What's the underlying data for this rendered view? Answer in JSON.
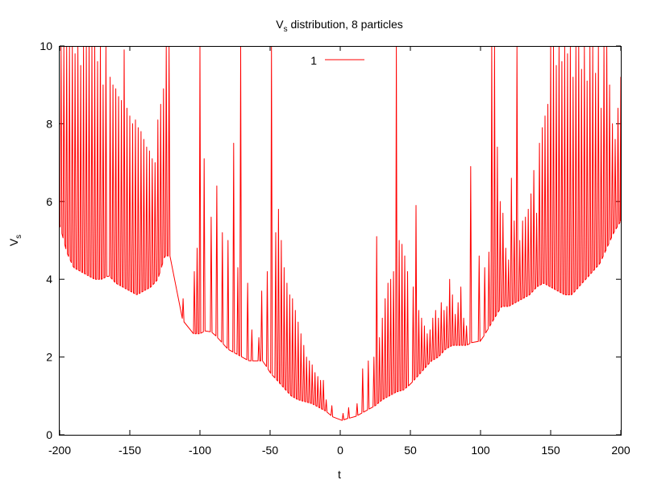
{
  "chart_data": {
    "type": "line",
    "title": "V",
    "title_sub": "s",
    "title_rest": " distribution, 8 particles",
    "xlabel": "t",
    "ylabel": "V",
    "ylabel_sub": "s",
    "xlim": [
      -200,
      200
    ],
    "ylim": [
      0,
      10
    ],
    "x_ticks": [
      -200,
      -150,
      -100,
      -50,
      0,
      50,
      100,
      150,
      200
    ],
    "y_ticks": [
      0,
      2,
      4,
      6,
      8,
      10
    ],
    "grid": false,
    "legend_position": "top-center",
    "series": [
      {
        "name": "1",
        "color": "#ff0000",
        "baseline": [
          [
            -200,
            5.4
          ],
          [
            -195,
            4.7
          ],
          [
            -190,
            4.3
          ],
          [
            -185,
            4.2
          ],
          [
            -180,
            4.1
          ],
          [
            -175,
            4.0
          ],
          [
            -170,
            4.0
          ],
          [
            -165,
            4.1
          ],
          [
            -160,
            3.9
          ],
          [
            -155,
            3.8
          ],
          [
            -150,
            3.7
          ],
          [
            -145,
            3.6
          ],
          [
            -140,
            3.7
          ],
          [
            -135,
            3.8
          ],
          [
            -130,
            4.0
          ],
          [
            -125,
            4.6
          ],
          [
            -120,
            4.6
          ],
          [
            -117,
            3.8
          ],
          [
            -114,
            3.1
          ],
          [
            -110,
            2.8
          ],
          [
            -106,
            2.6
          ],
          [
            -100,
            2.6
          ],
          [
            -95,
            2.7
          ],
          [
            -90,
            2.6
          ],
          [
            -85,
            2.4
          ],
          [
            -80,
            2.2
          ],
          [
            -75,
            2.1
          ],
          [
            -70,
            2.0
          ],
          [
            -65,
            1.9
          ],
          [
            -60,
            1.9
          ],
          [
            -55,
            1.9
          ],
          [
            -50,
            1.6
          ],
          [
            -45,
            1.4
          ],
          [
            -40,
            1.2
          ],
          [
            -35,
            1.0
          ],
          [
            -30,
            0.9
          ],
          [
            -25,
            0.85
          ],
          [
            -20,
            0.8
          ],
          [
            -15,
            0.7
          ],
          [
            -10,
            0.6
          ],
          [
            -5,
            0.45
          ],
          [
            0,
            0.35
          ],
          [
            5,
            0.42
          ],
          [
            10,
            0.45
          ],
          [
            15,
            0.55
          ],
          [
            20,
            0.65
          ],
          [
            25,
            0.75
          ],
          [
            30,
            0.9
          ],
          [
            35,
            1.0
          ],
          [
            40,
            1.1
          ],
          [
            45,
            1.15
          ],
          [
            50,
            1.3
          ],
          [
            55,
            1.5
          ],
          [
            60,
            1.7
          ],
          [
            65,
            1.9
          ],
          [
            70,
            2.0
          ],
          [
            75,
            2.2
          ],
          [
            80,
            2.3
          ],
          [
            85,
            2.3
          ],
          [
            90,
            2.3
          ],
          [
            95,
            2.4
          ],
          [
            100,
            2.4
          ],
          [
            105,
            2.7
          ],
          [
            110,
            3.0
          ],
          [
            115,
            3.3
          ],
          [
            120,
            3.3
          ],
          [
            125,
            3.4
          ],
          [
            130,
            3.5
          ],
          [
            135,
            3.6
          ],
          [
            140,
            3.8
          ],
          [
            145,
            3.9
          ],
          [
            150,
            3.8
          ],
          [
            155,
            3.7
          ],
          [
            160,
            3.6
          ],
          [
            165,
            3.6
          ],
          [
            170,
            3.8
          ],
          [
            175,
            4.0
          ],
          [
            180,
            4.2
          ],
          [
            185,
            4.4
          ],
          [
            190,
            4.8
          ],
          [
            195,
            5.2
          ],
          [
            200,
            5.5
          ]
        ],
        "spikes": [
          [
            -199,
            10
          ],
          [
            -197,
            10
          ],
          [
            -195,
            10
          ],
          [
            -193,
            10
          ],
          [
            -191,
            10
          ],
          [
            -189,
            9.8
          ],
          [
            -187,
            10
          ],
          [
            -185,
            9.5
          ],
          [
            -183,
            10
          ],
          [
            -181,
            10
          ],
          [
            -179,
            10
          ],
          [
            -177,
            10
          ],
          [
            -175,
            10
          ],
          [
            -173,
            9.6
          ],
          [
            -171,
            10
          ],
          [
            -169,
            9.0
          ],
          [
            -167,
            10
          ],
          [
            -164,
            9.2
          ],
          [
            -162,
            9.0
          ],
          [
            -160,
            8.9
          ],
          [
            -158,
            8.7
          ],
          [
            -156,
            8.6
          ],
          [
            -154,
            9.9
          ],
          [
            -152,
            8.4
          ],
          [
            -150,
            8.2
          ],
          [
            -148,
            8.0
          ],
          [
            -146,
            8.1
          ],
          [
            -144,
            7.9
          ],
          [
            -142,
            7.8
          ],
          [
            -140,
            7.6
          ],
          [
            -138,
            7.4
          ],
          [
            -136,
            7.3
          ],
          [
            -134,
            7.1
          ],
          [
            -132,
            7.0
          ],
          [
            -130,
            8.1
          ],
          [
            -128,
            8.5
          ],
          [
            -126,
            8.9
          ],
          [
            -124,
            10
          ],
          [
            -122,
            10
          ],
          [
            -112,
            3.5
          ],
          [
            -104,
            4.2
          ],
          [
            -102,
            4.8
          ],
          [
            -100,
            10
          ],
          [
            -97,
            7.1
          ],
          [
            -92,
            5.6
          ],
          [
            -88,
            6.4
          ],
          [
            -84,
            5.2
          ],
          [
            -80,
            5.0
          ],
          [
            -76,
            7.5
          ],
          [
            -73,
            4.3
          ],
          [
            -71,
            10
          ],
          [
            -66,
            3.9
          ],
          [
            -63,
            2.7
          ],
          [
            -58,
            2.5
          ],
          [
            -56,
            3.7
          ],
          [
            -52,
            4.2
          ],
          [
            -49,
            10
          ],
          [
            -46,
            5.2
          ],
          [
            -44,
            5.8
          ],
          [
            -42,
            5.0
          ],
          [
            -40,
            4.3
          ],
          [
            -38,
            3.9
          ],
          [
            -36,
            3.6
          ],
          [
            -34,
            3.5
          ],
          [
            -32,
            3.2
          ],
          [
            -30,
            2.9
          ],
          [
            -28,
            2.6
          ],
          [
            -26,
            2.3
          ],
          [
            -24,
            2.0
          ],
          [
            -22,
            1.9
          ],
          [
            -20,
            1.8
          ],
          [
            -18,
            1.6
          ],
          [
            -16,
            1.5
          ],
          [
            -14,
            1.4
          ],
          [
            -12,
            1.4
          ],
          [
            -10,
            0.9
          ],
          [
            -6,
            0.75
          ],
          [
            2,
            0.55
          ],
          [
            6,
            0.7
          ],
          [
            12,
            0.8
          ],
          [
            16,
            1.7
          ],
          [
            20,
            1.9
          ],
          [
            24,
            2.0
          ],
          [
            26,
            5.1
          ],
          [
            28,
            2.5
          ],
          [
            30,
            3.0
          ],
          [
            32,
            3.5
          ],
          [
            34,
            3.9
          ],
          [
            36,
            4.0
          ],
          [
            38,
            4.2
          ],
          [
            40,
            10
          ],
          [
            42,
            5.0
          ],
          [
            44,
            4.9
          ],
          [
            46,
            4.6
          ],
          [
            48,
            4.2
          ],
          [
            52,
            3.8
          ],
          [
            54,
            5.9
          ],
          [
            56,
            3.2
          ],
          [
            58,
            3.0
          ],
          [
            60,
            2.8
          ],
          [
            62,
            2.6
          ],
          [
            64,
            2.7
          ],
          [
            66,
            3.0
          ],
          [
            68,
            3.2
          ],
          [
            70,
            3.0
          ],
          [
            72,
            3.4
          ],
          [
            74,
            3.2
          ],
          [
            76,
            3.3
          ],
          [
            78,
            4.0
          ],
          [
            80,
            3.6
          ],
          [
            82,
            3.1
          ],
          [
            84,
            3.4
          ],
          [
            86,
            3.8
          ],
          [
            88,
            3.0
          ],
          [
            90,
            2.8
          ],
          [
            93,
            6.9
          ],
          [
            99,
            4.6
          ],
          [
            103,
            4.3
          ],
          [
            106,
            4.7
          ],
          [
            108,
            10
          ],
          [
            110,
            10
          ],
          [
            112,
            7.4
          ],
          [
            114,
            6.0
          ],
          [
            116,
            5.7
          ],
          [
            118,
            4.8
          ],
          [
            120,
            4.5
          ],
          [
            122,
            6.6
          ],
          [
            124,
            5.5
          ],
          [
            126,
            10
          ],
          [
            128,
            5.0
          ],
          [
            130,
            5.5
          ],
          [
            132,
            5.6
          ],
          [
            134,
            5.8
          ],
          [
            136,
            6.2
          ],
          [
            138,
            6.8
          ],
          [
            140,
            5.7
          ],
          [
            142,
            7.5
          ],
          [
            144,
            7.9
          ],
          [
            146,
            8.2
          ],
          [
            148,
            8.5
          ],
          [
            150,
            10
          ],
          [
            152,
            10
          ],
          [
            154,
            9.5
          ],
          [
            156,
            10
          ],
          [
            158,
            9.6
          ],
          [
            160,
            10
          ],
          [
            162,
            9.8
          ],
          [
            164,
            10
          ],
          [
            166,
            9.2
          ],
          [
            168,
            10
          ],
          [
            170,
            10
          ],
          [
            172,
            9.4
          ],
          [
            174,
            10
          ],
          [
            176,
            9.1
          ],
          [
            178,
            10
          ],
          [
            180,
            10
          ],
          [
            182,
            9.3
          ],
          [
            184,
            10
          ],
          [
            186,
            8.4
          ],
          [
            188,
            10
          ],
          [
            190,
            10
          ],
          [
            192,
            9.0
          ],
          [
            194,
            8.0
          ],
          [
            196,
            7.6
          ],
          [
            198,
            8.4
          ],
          [
            200,
            9.2
          ]
        ]
      }
    ]
  }
}
